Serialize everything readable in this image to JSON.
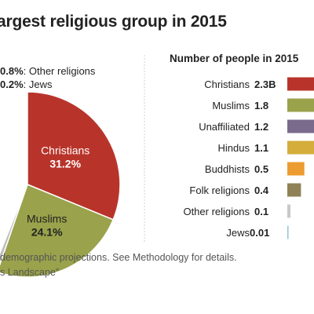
{
  "title": "argest religious group in 2015",
  "notes": {
    "line1": "demographic projections. See Methodology for details.",
    "line2": "s Landscape”"
  },
  "chart_data": [
    {
      "type": "pie",
      "slices": [
        {
          "label": "Christians",
          "value": 31.2,
          "value_text": "31.2%",
          "color": "#b8342a"
        },
        {
          "label": "Muslims",
          "value": 24.1,
          "value_text": "24.1%",
          "color": "#9aa24b"
        },
        {
          "label": "Other religions",
          "value": 0.8,
          "value_text": "0.8%",
          "color": "#bfbfbf"
        },
        {
          "label": "Jews",
          "value": 0.2,
          "value_text": "0.2%",
          "color": "#8fc3dd"
        }
      ],
      "callouts": [
        {
          "value_text": "0.8%",
          "label": "Other religions"
        },
        {
          "value_text": "0.2%",
          "label": "Jews"
        }
      ]
    },
    {
      "type": "bar",
      "title": "Number of people in 2015",
      "categories": [
        "Christians",
        "Muslims",
        "Unaffiliated",
        "Hindus",
        "Buddhists",
        "Folk religions",
        "Other religions",
        "Jews"
      ],
      "values": [
        2.3,
        1.8,
        1.2,
        1.1,
        0.5,
        0.4,
        0.1,
        0.01
      ],
      "value_labels": [
        "2.3B",
        "1.8",
        "1.2",
        "1.1",
        "0.5",
        "0.4",
        "0.1",
        "0.01"
      ],
      "colors": [
        "#b8342a",
        "#9aa24b",
        "#7a6b8c",
        "#d4ad3b",
        "#ec9c30",
        "#8f8257",
        "#c8c8c8",
        "#8fc3dd"
      ],
      "unit": "billions",
      "orientation": "horizontal"
    }
  ]
}
